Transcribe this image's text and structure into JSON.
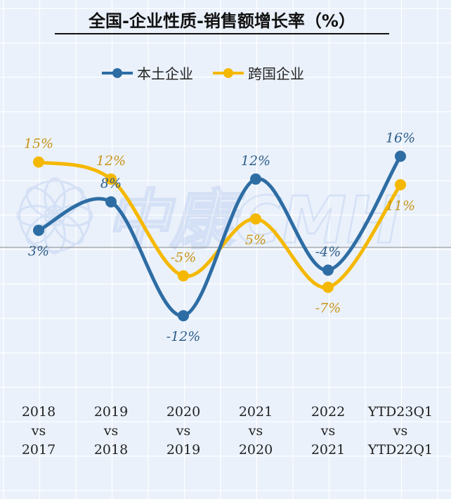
{
  "chart_data": {
    "type": "line",
    "title": "全国-企业性质-销售额增长率（%）",
    "categories": [
      [
        "2018",
        "vs",
        "2017"
      ],
      [
        "2019",
        "vs",
        "2018"
      ],
      [
        "2020",
        "vs",
        "2019"
      ],
      [
        "2021",
        "vs",
        "2020"
      ],
      [
        "2022",
        "vs",
        "2021"
      ],
      [
        "YTD23Q1",
        "vs",
        "YTD22Q1"
      ]
    ],
    "series": [
      {
        "name": "本土企业",
        "color": "#2e6da4",
        "values": [
          3,
          8,
          -12,
          12,
          -4,
          16
        ],
        "labels": [
          "3%",
          "8%",
          "-12%",
          "12%",
          "-4%",
          "16%"
        ]
      },
      {
        "name": "跨国企业",
        "color": "#f5b800",
        "values": [
          15,
          12,
          -5,
          5,
          -7,
          11
        ],
        "labels": [
          "15%",
          "12%",
          "-5%",
          "5%",
          "-7%",
          "11%"
        ]
      }
    ],
    "legend_position": "top-center",
    "grid": true,
    "smooth": true,
    "watermark": "中康CMH"
  },
  "colors": {
    "background": "#eaf1fb",
    "grid": "#ffffff",
    "axis": "#8a8a8a",
    "label_local": "#2f5f8a",
    "label_multinational": "#c9961a"
  }
}
